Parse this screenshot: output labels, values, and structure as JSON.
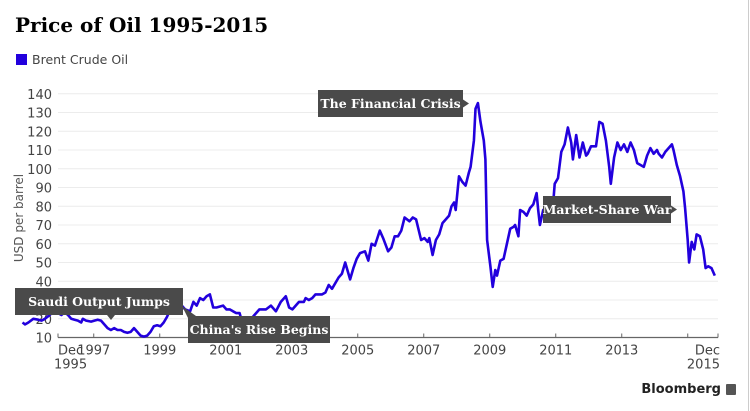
{
  "chart_data": {
    "type": "line",
    "title": "Price of Oil 1995-2015",
    "xlabel": "",
    "ylabel": "USD per barrel",
    "ylim": [
      10,
      140
    ],
    "xlim": [
      1995.917,
      2015.917
    ],
    "grid": true,
    "legend": {
      "position": "top-left",
      "entries": [
        "Brent Crude Oil"
      ]
    },
    "yticks": [
      10,
      20,
      30,
      40,
      50,
      60,
      70,
      80,
      90,
      100,
      110,
      120,
      130,
      140
    ],
    "xticks": [
      {
        "x": 1995.917,
        "label": "Dec",
        "label2": "1995"
      },
      {
        "x": 1997.0,
        "label": "1997"
      },
      {
        "x": 1999.0,
        "label": "1999"
      },
      {
        "x": 2001.0,
        "label": "2001"
      },
      {
        "x": 2003.0,
        "label": "2003"
      },
      {
        "x": 2005.0,
        "label": "2005"
      },
      {
        "x": 2007.0,
        "label": "2007"
      },
      {
        "x": 2009.0,
        "label": "2009"
      },
      {
        "x": 2011.0,
        "label": "2011"
      },
      {
        "x": 2013.0,
        "label": "2013"
      },
      {
        "x": 2015.0,
        "label": ""
      },
      {
        "x": 2015.917,
        "label": "Dec",
        "label2": "2015"
      }
    ],
    "series": [
      {
        "name": "Brent Crude Oil",
        "color": "#2200dd",
        "points": [
          [
            1995.92,
            18
          ],
          [
            1996.0,
            17
          ],
          [
            1996.1,
            18
          ],
          [
            1996.25,
            20
          ],
          [
            1996.4,
            19.5
          ],
          [
            1996.5,
            19
          ],
          [
            1996.6,
            20
          ],
          [
            1996.75,
            22
          ],
          [
            1996.85,
            24
          ],
          [
            1997.0,
            23
          ],
          [
            1997.1,
            22
          ],
          [
            1997.2,
            23.5
          ],
          [
            1997.3,
            22
          ],
          [
            1997.4,
            20
          ],
          [
            1997.5,
            19.5
          ],
          [
            1997.6,
            19
          ],
          [
            1997.7,
            18
          ],
          [
            1997.75,
            20
          ],
          [
            1997.85,
            19
          ],
          [
            1998.0,
            18.5
          ],
          [
            1998.1,
            19
          ],
          [
            1998.2,
            19.5
          ],
          [
            1998.3,
            19
          ],
          [
            1998.4,
            17
          ],
          [
            1998.5,
            15
          ],
          [
            1998.6,
            14
          ],
          [
            1998.7,
            15
          ],
          [
            1998.8,
            14
          ],
          [
            1998.9,
            14
          ],
          [
            1999.0,
            13
          ],
          [
            1999.1,
            12.5
          ],
          [
            1999.2,
            13
          ],
          [
            1999.3,
            15
          ],
          [
            1999.4,
            13
          ],
          [
            1999.5,
            11
          ],
          [
            1999.6,
            10.5
          ],
          [
            1999.7,
            11
          ],
          [
            1999.8,
            13
          ],
          [
            1999.9,
            16
          ],
          [
            2000.0,
            16.5
          ],
          [
            2000.1,
            16
          ],
          [
            2000.2,
            18
          ],
          [
            2000.3,
            21
          ],
          [
            2000.4,
            25
          ],
          [
            2000.5,
            23
          ],
          [
            2000.55,
            25
          ],
          [
            2000.65,
            26
          ],
          [
            2000.75,
            27
          ],
          [
            2000.85,
            25
          ],
          [
            2001.0,
            24
          ],
          [
            2001.1,
            29
          ],
          [
            2001.2,
            27
          ],
          [
            2001.3,
            31
          ],
          [
            2001.4,
            30
          ],
          [
            2001.5,
            32
          ],
          [
            2001.6,
            33
          ],
          [
            2001.7,
            26
          ],
          [
            2001.8,
            26
          ],
          [
            2002.0,
            27
          ],
          [
            2002.1,
            25
          ],
          [
            2002.2,
            25
          ],
          [
            2002.3,
            24
          ],
          [
            2002.4,
            23
          ],
          [
            2002.5,
            23
          ],
          [
            2002.55,
            20
          ],
          [
            2002.7,
            19.5
          ],
          [
            2002.85,
            20
          ],
          [
            2003.0,
            23
          ],
          [
            2003.1,
            25
          ],
          [
            2003.3,
            25
          ],
          [
            2003.45,
            27
          ],
          [
            2003.6,
            24
          ],
          [
            2003.75,
            29
          ],
          [
            2003.9,
            32
          ],
          [
            2004.0,
            26
          ],
          [
            2004.1,
            25
          ],
          [
            2004.3,
            29
          ],
          [
            2004.45,
            29
          ],
          [
            2004.5,
            31
          ],
          [
            2004.6,
            30
          ],
          [
            2004.7,
            31
          ],
          [
            2004.8,
            33
          ],
          [
            2005.0,
            33
          ],
          [
            2005.1,
            34
          ],
          [
            2005.2,
            38
          ],
          [
            2005.3,
            36
          ],
          [
            2005.5,
            42
          ],
          [
            2005.6,
            44
          ],
          [
            2005.7,
            50
          ],
          [
            2005.85,
            41
          ],
          [
            2005.95,
            47
          ],
          [
            2006.05,
            52
          ],
          [
            2006.15,
            55
          ],
          [
            2006.3,
            56
          ],
          [
            2006.4,
            51
          ],
          [
            2006.5,
            60
          ],
          [
            2006.6,
            59
          ],
          [
            2006.75,
            67
          ],
          [
            2006.85,
            63
          ],
          [
            2007.0,
            56
          ],
          [
            2007.1,
            58
          ],
          [
            2007.2,
            64
          ],
          [
            2007.3,
            64
          ],
          [
            2007.4,
            67
          ],
          [
            2007.5,
            74
          ],
          [
            2007.65,
            72
          ],
          [
            2007.75,
            74
          ],
          [
            2007.85,
            73
          ],
          [
            2008.0,
            62
          ],
          [
            2008.1,
            63
          ],
          [
            2008.2,
            61
          ],
          [
            2008.25,
            63
          ],
          [
            2008.35,
            54
          ],
          [
            2008.45,
            62
          ],
          [
            2008.55,
            65
          ],
          [
            2008.65,
            71
          ],
          [
            2008.75,
            73
          ],
          [
            2008.85,
            75
          ],
          [
            2008.92,
            80
          ],
          [
            2009.0,
            82
          ],
          [
            2009.05,
            78
          ],
          [
            2009.15,
            96
          ],
          [
            2009.25,
            93
          ],
          [
            2009.35,
            91
          ],
          [
            2009.45,
            98
          ],
          [
            2009.5,
            101
          ],
          [
            2009.6,
            115
          ],
          [
            2009.65,
            132
          ],
          [
            2009.72,
            135
          ],
          [
            2009.8,
            125
          ],
          [
            2009.9,
            115
          ],
          [
            2009.95,
            105
          ],
          [
            2010.0,
            62
          ],
          [
            2010.1,
            48
          ],
          [
            2010.17,
            37
          ],
          [
            2010.25,
            46
          ],
          [
            2010.3,
            43
          ],
          [
            2010.4,
            51
          ],
          [
            2010.5,
            52
          ],
          [
            2010.6,
            60
          ],
          [
            2010.7,
            68
          ],
          [
            2010.8,
            69
          ],
          [
            2010.85,
            70
          ],
          [
            2010.95,
            64
          ],
          [
            2011.0,
            78
          ],
          [
            2011.1,
            77
          ],
          [
            2011.2,
            75
          ],
          [
            2011.3,
            79
          ],
          [
            2011.4,
            81
          ],
          [
            2011.5,
            87
          ],
          [
            2011.55,
            78
          ],
          [
            2011.6,
            70
          ],
          [
            2011.7,
            78
          ],
          [
            2011.8,
            76
          ],
          [
            2011.9,
            75
          ],
          [
            2012.0,
            81
          ],
          [
            2012.05,
            92
          ],
          [
            2012.15,
            95
          ],
          [
            2012.25,
            109
          ],
          [
            2012.35,
            113
          ],
          [
            2012.45,
            122
          ],
          [
            2012.55,
            114
          ],
          [
            2012.6,
            105
          ],
          [
            2012.7,
            118
          ],
          [
            2012.8,
            106
          ],
          [
            2012.9,
            114
          ],
          [
            2013.0,
            107
          ],
          [
            2013.05,
            108
          ],
          [
            2013.15,
            112
          ],
          [
            2013.3,
            112
          ],
          [
            2013.4,
            125
          ],
          [
            2013.5,
            124
          ],
          [
            2013.6,
            115
          ],
          [
            2013.7,
            101
          ],
          [
            2013.75,
            92
          ],
          [
            2013.85,
            106
          ],
          [
            2013.95,
            114
          ],
          [
            2014.05,
            110
          ],
          [
            2014.15,
            113
          ],
          [
            2014.25,
            109
          ],
          [
            2014.35,
            114
          ],
          [
            2014.45,
            110
          ],
          [
            2014.55,
            103
          ],
          [
            2014.65,
            102
          ],
          [
            2014.75,
            101
          ],
          [
            2014.85,
            107
          ],
          [
            2014.95,
            111
          ],
          [
            2015.05,
            108
          ],
          [
            2015.15,
            110
          ],
          [
            2015.2,
            108
          ],
          [
            2015.3,
            106
          ],
          [
            2015.4,
            109
          ],
          [
            2015.5,
            111
          ],
          [
            2015.6,
            113
          ],
          [
            2015.65,
            110
          ],
          [
            2015.75,
            102
          ],
          [
            2015.85,
            96
          ],
          [
            2015.95,
            88
          ],
          [
            2016.0,
            79
          ],
          [
            2016.08,
            62
          ],
          [
            2016.12,
            50
          ],
          [
            2016.2,
            61
          ],
          [
            2016.28,
            57
          ],
          [
            2016.35,
            65
          ],
          [
            2016.45,
            64
          ],
          [
            2016.55,
            57
          ],
          [
            2016.62,
            47
          ],
          [
            2016.7,
            48
          ],
          [
            2016.8,
            47
          ],
          [
            2016.9,
            43
          ]
        ]
      }
    ],
    "annotations": [
      {
        "label": "Saudi Output Jumps",
        "x": 1997.75,
        "y": 20
      },
      {
        "label": "China's Rise Begins",
        "x": 1999.85,
        "y": 25
      },
      {
        "label": "The Financial Crisis",
        "x": 2009.72,
        "y": 135
      },
      {
        "label": "Market-Share War",
        "x": 2016.0,
        "y": 79
      }
    ]
  },
  "legend_label": "Brent Crude Oil",
  "brand": "Bloomberg"
}
